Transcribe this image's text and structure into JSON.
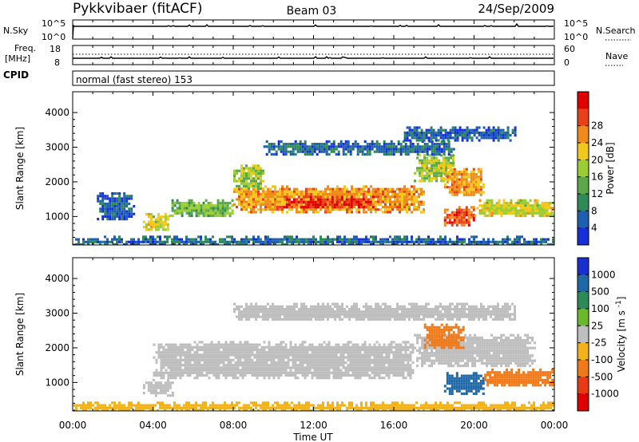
{
  "header": {
    "station": "Pykkvibaer (fitACF)",
    "beam": "Beam 03",
    "date": "24/Sep/2009"
  },
  "nsky_panel": {
    "left_label": "N.Sky",
    "right_label": "N.Search",
    "tick_top": "10^5",
    "tick_bottom": "10^0",
    "right_tick_top": "10^5",
    "right_tick_bottom": "10^0"
  },
  "freq_panel": {
    "left_label_1": "Freq.",
    "left_label_2": "[MHz]",
    "right_label": "Nave",
    "left_ticks": [
      "18",
      "8"
    ],
    "right_ticks": [
      "60",
      "0"
    ]
  },
  "cpid": {
    "label": "CPID",
    "mode": "normal (fast stereo) 153"
  },
  "colors": {
    "power": [
      "#1530d8",
      "#1f5fb0",
      "#2e8b57",
      "#5aa84a",
      "#9acd32",
      "#f2c81a",
      "#f08a1a",
      "#e8401a",
      "#e00000"
    ],
    "velocity": [
      "#1a2fd0",
      "#1f68a8",
      "#2e8b57",
      "#6cb82c",
      "#bebebe",
      "#f2b21a",
      "#f07a1a",
      "#e83a14",
      "#e00000"
    ],
    "ground_scatter": "#bebebe"
  },
  "chart_data": [
    {
      "type": "heatmap",
      "panel": "power",
      "ylabel": "Slant Range [km]",
      "ylim": [
        180,
        4600
      ],
      "yticks": [
        "1000",
        "2000",
        "3000",
        "4000"
      ],
      "xlim": [
        0,
        24
      ],
      "colorbar_label": "Power [dB]",
      "colorbar_ticks": [
        "4",
        "8",
        "12",
        "16",
        "20",
        "24",
        "28"
      ],
      "echo_regions": [
        {
          "t0": 3.5,
          "t1": 4.8,
          "r0": 620,
          "r1": 1100,
          "value": 18
        },
        {
          "t0": 4.8,
          "t1": 8.0,
          "r0": 1000,
          "r1": 1500,
          "value": 14
        },
        {
          "t0": 8.0,
          "t1": 17.5,
          "r0": 1150,
          "r1": 1900,
          "value": 22
        },
        {
          "t0": 10.5,
          "t1": 15.0,
          "r0": 1250,
          "r1": 1600,
          "value": 28
        },
        {
          "t0": 8.0,
          "t1": 9.5,
          "r0": 1800,
          "r1": 2500,
          "value": 16
        },
        {
          "t0": 17.0,
          "t1": 19.0,
          "r0": 2000,
          "r1": 2800,
          "value": 16
        },
        {
          "t0": 18.5,
          "t1": 20.5,
          "r0": 1600,
          "r1": 2400,
          "value": 22
        },
        {
          "t0": 18.5,
          "t1": 20.0,
          "r0": 750,
          "r1": 1300,
          "value": 26
        },
        {
          "t0": 20.0,
          "t1": 24.0,
          "r0": 1000,
          "r1": 1500,
          "value": 18
        },
        {
          "t0": 9.5,
          "t1": 19.0,
          "r0": 2800,
          "r1": 3200,
          "value": 6
        },
        {
          "t0": 16.5,
          "t1": 22.0,
          "r0": 3200,
          "r1": 3600,
          "value": 5
        },
        {
          "t0": 0.0,
          "t1": 24.0,
          "r0": 180,
          "r1": 450,
          "value": 6
        },
        {
          "t0": 1.2,
          "t1": 3.0,
          "r0": 900,
          "r1": 1700,
          "value": 5
        }
      ]
    },
    {
      "type": "heatmap",
      "panel": "velocity",
      "ylabel": "Slant Range [km]",
      "ylim": [
        180,
        4600
      ],
      "yticks": [
        "1000",
        "2000",
        "3000",
        "4000"
      ],
      "xlim": [
        0,
        24
      ],
      "xticks": [
        "00:00",
        "04:00",
        "08:00",
        "12:00",
        "16:00",
        "20:00",
        "00:00"
      ],
      "xlabel": "Time UT",
      "colorbar_label": "Velocity [m s^-1]",
      "colorbar_ticks": [
        "1000",
        "500",
        "100",
        "25",
        "-25",
        "-100",
        "-500",
        "-1000"
      ],
      "echo_regions": [
        {
          "t0": 4.0,
          "t1": 17.0,
          "r0": 1150,
          "r1": 2200,
          "value": "ground"
        },
        {
          "t0": 3.5,
          "t1": 5.0,
          "r0": 650,
          "r1": 1100,
          "value": "ground"
        },
        {
          "t0": 17.0,
          "t1": 23.0,
          "r0": 1500,
          "r1": 2400,
          "value": "ground"
        },
        {
          "t0": 8.0,
          "t1": 22.0,
          "r0": 2800,
          "r1": 3300,
          "value": "ground"
        },
        {
          "t0": 17.5,
          "t1": 19.5,
          "r0": 2000,
          "r1": 2700,
          "value": -300
        },
        {
          "t0": 18.5,
          "t1": 20.5,
          "r0": 700,
          "r1": 1300,
          "value": 200
        },
        {
          "t0": 20.5,
          "t1": 24.0,
          "r0": 900,
          "r1": 1400,
          "value": -200
        },
        {
          "t0": 0.0,
          "t1": 24.0,
          "r0": 180,
          "r1": 450,
          "value": -60
        }
      ]
    }
  ]
}
